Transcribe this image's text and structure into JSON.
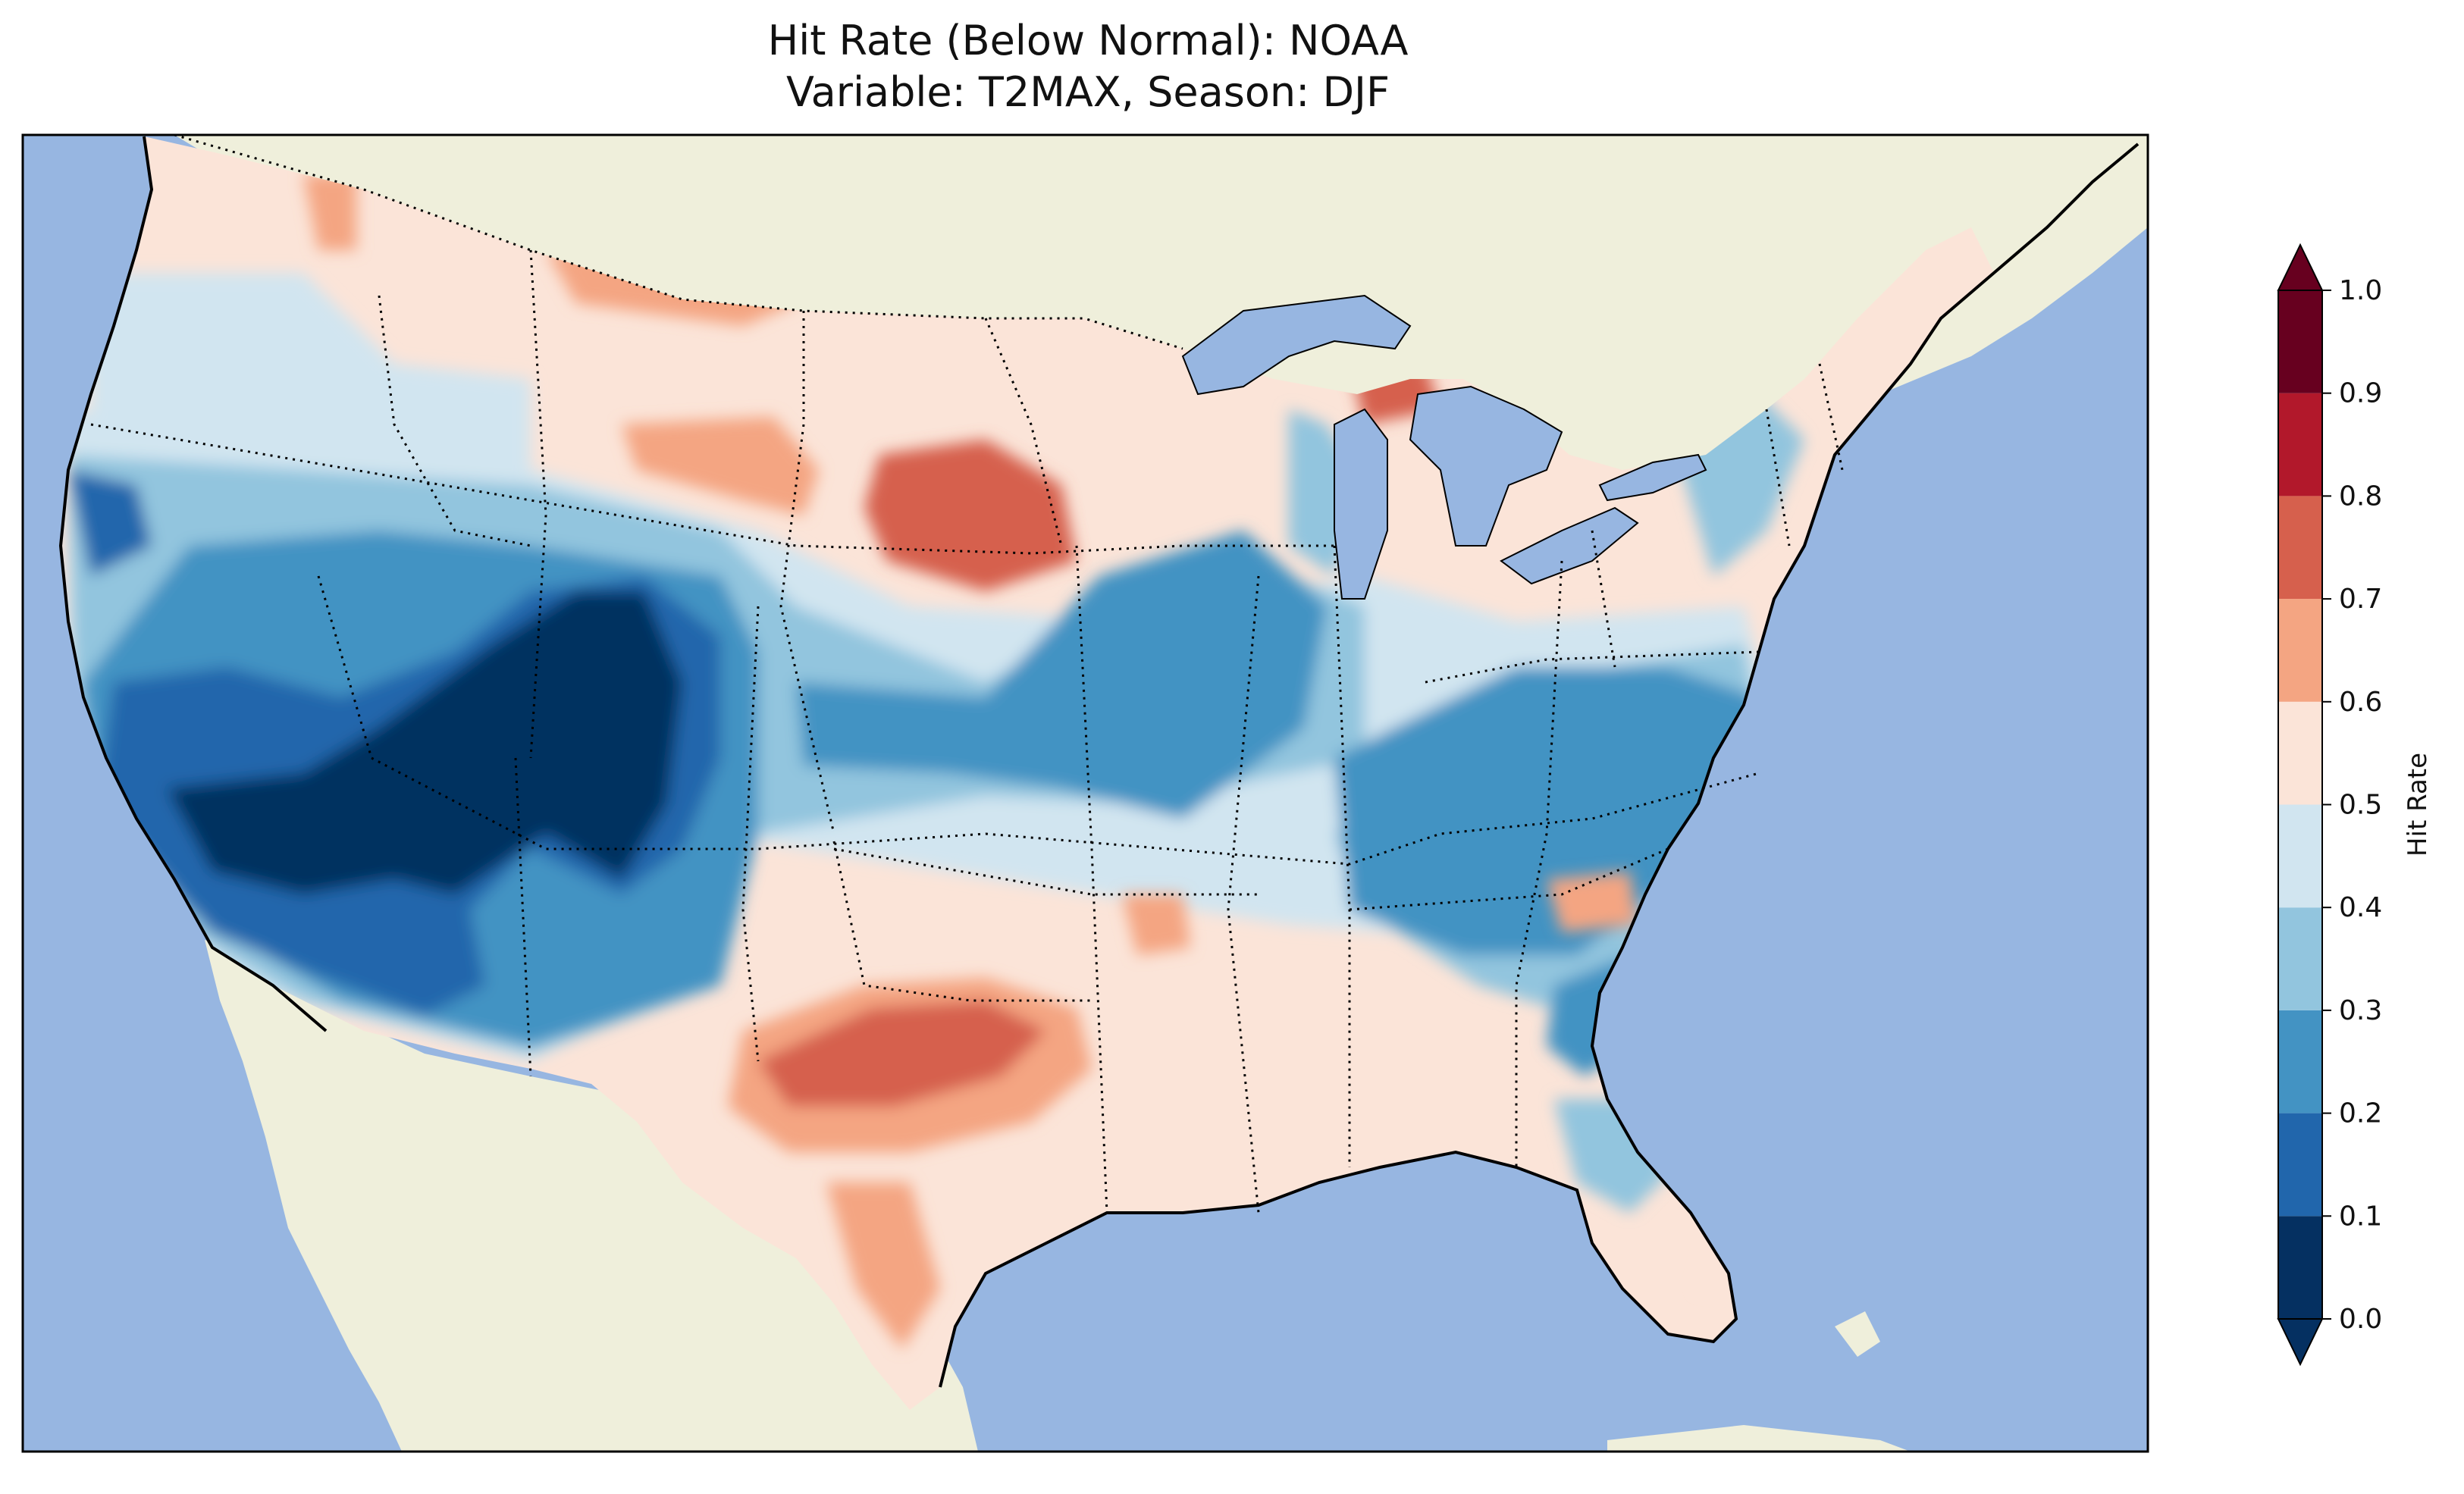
{
  "title": {
    "line1": "Hit Rate (Below Normal): NOAA",
    "line2": "Variable: T2MAX, Season: DJF"
  },
  "map": {
    "region": "Contiguous United States",
    "ocean_color": "#97b6e1",
    "land_color": "#efefdb"
  },
  "colorbar": {
    "label": "Hit Rate",
    "extend": "both",
    "range": [
      0.0,
      1.0
    ],
    "ticks": [
      "0.0",
      "0.1",
      "0.2",
      "0.3",
      "0.4",
      "0.5",
      "0.6",
      "0.7",
      "0.8",
      "0.9",
      "1.0"
    ],
    "bins": [
      {
        "from": 0.0,
        "to": 0.1,
        "color": "#053061"
      },
      {
        "from": 0.1,
        "to": 0.2,
        "color": "#2166ac"
      },
      {
        "from": 0.2,
        "to": 0.3,
        "color": "#4393c3"
      },
      {
        "from": 0.3,
        "to": 0.4,
        "color": "#92c5de"
      },
      {
        "from": 0.4,
        "to": 0.5,
        "color": "#d1e5f0"
      },
      {
        "from": 0.5,
        "to": 0.6,
        "color": "#fbe4d8"
      },
      {
        "from": 0.6,
        "to": 0.7,
        "color": "#f4a582"
      },
      {
        "from": 0.7,
        "to": 0.8,
        "color": "#d6604d"
      },
      {
        "from": 0.8,
        "to": 0.9,
        "color": "#b2182b"
      },
      {
        "from": 0.9,
        "to": 1.0,
        "color": "#67001f"
      }
    ],
    "under_color": "#053061",
    "over_color": "#67001f"
  },
  "chart_data": {
    "type": "heatmap",
    "title": "Hit Rate (Below Normal): NOAA — Variable: T2MAX, Season: DJF",
    "value_label": "Hit Rate",
    "vmin": 0.0,
    "vmax": 1.0,
    "regions": [
      {
        "name": "Pacific Northwest coast",
        "value": 0.55
      },
      {
        "name": "Northern California coast",
        "value": 0.15
      },
      {
        "name": "Southern California / Nevada / Arizona",
        "value": 0.05
      },
      {
        "name": "Utah / Colorado plateau",
        "value": 0.05
      },
      {
        "name": "Idaho / Wyoming",
        "value": 0.25
      },
      {
        "name": "Montana",
        "value": 0.55
      },
      {
        "name": "North Dakota / South Dakota",
        "value": 0.72
      },
      {
        "name": "Nebraska / Kansas",
        "value": 0.25
      },
      {
        "name": "Iowa / Missouri / Illinois",
        "value": 0.25
      },
      {
        "name": "Upper Michigan",
        "value": 0.75
      },
      {
        "name": "Oklahoma",
        "value": 0.55
      },
      {
        "name": "North-central Texas",
        "value": 0.72
      },
      {
        "name": "South Texas",
        "value": 0.65
      },
      {
        "name": "Gulf Coast states",
        "value": 0.55
      },
      {
        "name": "Tennessee / Kentucky",
        "value": 0.25
      },
      {
        "name": "Carolinas / Georgia coast",
        "value": 0.25
      },
      {
        "name": "Northeast / New England",
        "value": 0.55
      },
      {
        "name": "Florida peninsula",
        "value": 0.45
      }
    ]
  }
}
